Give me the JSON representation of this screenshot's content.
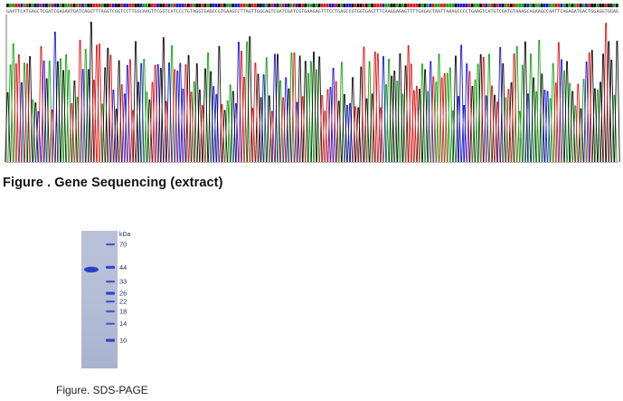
{
  "sequencing": {
    "caption": "Figure . Gene Sequencing (extract)",
    "base_colors": {
      "A": "#1aa51a",
      "C": "#1b1be0",
      "G": "#111111",
      "T": "#e01b1b"
    },
    "sequence": "GAATTCATGAGCTCGATCGAGAATGATCAGGTTTAGGTCGGTCCTTGGCAAGTTCGGTCATCCCTGTAGGTGAGCCGTGAAGCCTTAGTTGGCAGTCGATCGATCGTGAAGAGTTTCCTGAGCCGTGGTGAGTTTCAAGGAGAGTTTTGAGACTAATTAAAGCCCCTGAAGTCATGTCGATGTAAAGCAGAAGCCAATTCAGAGATGACTGGAGGTGGAG"
  },
  "gel": {
    "caption": "Figure. SDS-PAGE",
    "unit_label": "kDa",
    "ladder_labels": [
      "70",
      "44",
      "33",
      "26",
      "22",
      "18",
      "14",
      "10"
    ],
    "ladder_kda": [
      70,
      44,
      33,
      26,
      22,
      18,
      14,
      10
    ],
    "sample_band_kda": 44,
    "colors": {
      "gel_background": "#b4bdd6",
      "band": "#2b3ec4",
      "label": "#2a2f66"
    }
  }
}
